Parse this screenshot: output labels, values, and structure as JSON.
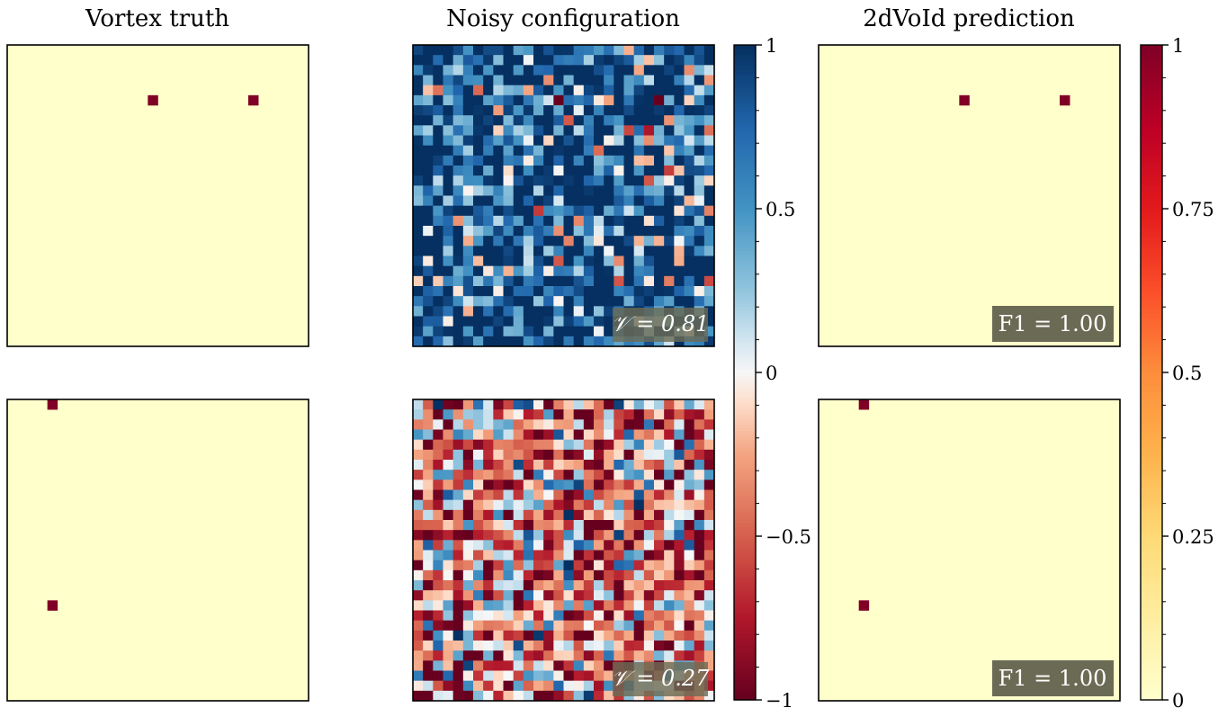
{
  "chart_data": {
    "type": "heatmap",
    "grid_size": 30,
    "columns": [
      {
        "title": "Vortex truth"
      },
      {
        "title": "Noisy configuration"
      },
      {
        "title": "2dVoId prediction"
      }
    ],
    "rows": [
      {
        "vortex_cells": [
          [
            5,
            14
          ],
          [
            5,
            24
          ]
        ],
        "noisy_mean": 0.8,
        "noisy_annotation": "𝒱 = 0.81",
        "prediction_annotation": "F1  = 1.00"
      },
      {
        "vortex_cells": [
          [
            0,
            4
          ],
          [
            20,
            4
          ]
        ],
        "noisy_mean": -0.3,
        "noisy_annotation": "𝒱 = 0.27",
        "prediction_annotation": "F1  = 1.00"
      }
    ],
    "colorbars": [
      {
        "name": "spin",
        "colormap": "RdBu",
        "range": [
          -1,
          1
        ],
        "tick_values": [
          1,
          0.5,
          0,
          -0.5,
          -1
        ],
        "tick_labels": [
          "1",
          "0.5",
          "0",
          "−0.5",
          "−1"
        ]
      },
      {
        "name": "vortex",
        "colormap": "YlOrRd",
        "range": [
          0,
          1
        ],
        "tick_values": [
          1,
          0.75,
          0.5,
          0.25,
          0
        ],
        "tick_labels": [
          "1",
          "0.75",
          "0.5",
          "0.25",
          "0"
        ]
      }
    ],
    "colors": {
      "vortex": "#800026",
      "background": "#ffffcc",
      "annotation_box": "#6b6b55"
    }
  }
}
